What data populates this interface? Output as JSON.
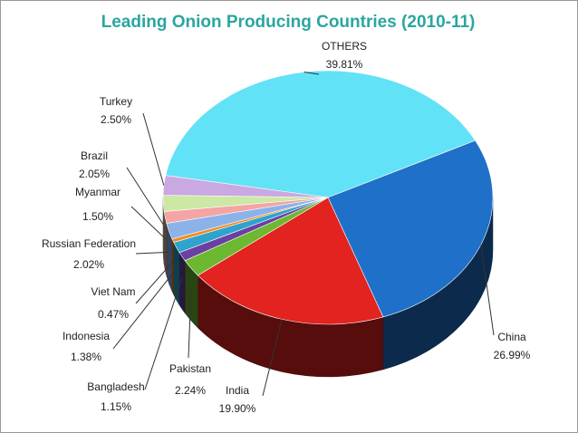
{
  "chart_data": {
    "type": "pie",
    "title": "Leading Onion Producing Countries (2010-11)",
    "categories": [
      "OTHERS",
      "China",
      "India",
      "Pakistan",
      "Bangladesh",
      "Indonesia",
      "Viet Nam",
      "Russian Federation",
      "Myanmar",
      "Brazil",
      "Turkey"
    ],
    "values": [
      39.81,
      26.99,
      19.9,
      2.24,
      1.15,
      1.38,
      0.47,
      2.02,
      1.5,
      2.05,
      2.5
    ],
    "value_labels": [
      "39.81%",
      "26.99%",
      "19.90%",
      "2.24%",
      "1.15%",
      "1.38%",
      "0.47%",
      "2.02%",
      "1.50%",
      "2.05%",
      "2.50%"
    ],
    "colors": [
      "#62e2f6",
      "#1f70c8",
      "#e2231f",
      "#6cb830",
      "#6a40a2",
      "#2ea4cc",
      "#f08c20",
      "#8cb2ea",
      "#f4a4a4",
      "#cce8a4",
      "#caa8e2"
    ]
  }
}
